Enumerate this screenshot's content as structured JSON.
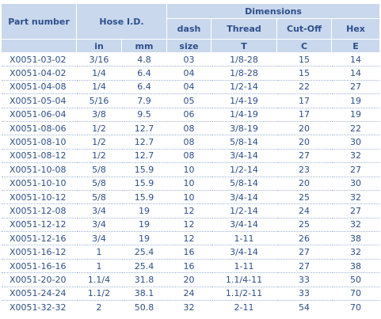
{
  "header": {
    "part_number": "Part number",
    "hose_id": "Hose I.D.",
    "dimensions": "Dimensions",
    "dash": "dash",
    "thread": "Thread",
    "cutoff": "Cut-Off",
    "hex": "Hex",
    "in": "in",
    "mm": "mm",
    "size": "size",
    "t": "T",
    "c": "C",
    "e": "E"
  },
  "rows": [
    {
      "part": "X0051-03-02",
      "in": "3/16",
      "mm": "4.8",
      "size": "03",
      "thread": "1/8-28",
      "cutoff": "15",
      "hex": "14"
    },
    {
      "part": "X0051-04-02",
      "in": "1/4",
      "mm": "6.4",
      "size": "04",
      "thread": "1/8-28",
      "cutoff": "15",
      "hex": "14"
    },
    {
      "part": "X0051-04-08",
      "in": "1/4",
      "mm": "6.4",
      "size": "04",
      "thread": "1/2-14",
      "cutoff": "22",
      "hex": "27"
    },
    {
      "part": "X0051-05-04",
      "in": "5/16",
      "mm": "7.9",
      "size": "05",
      "thread": "1/4-19",
      "cutoff": "17",
      "hex": "19"
    },
    {
      "part": "X0051-06-04",
      "in": "3/8",
      "mm": "9.5",
      "size": "06",
      "thread": "1/4-19",
      "cutoff": "17",
      "hex": "19"
    },
    {
      "part": "X0051-08-06",
      "in": "1/2",
      "mm": "12.7",
      "size": "08",
      "thread": "3/8-19",
      "cutoff": "20",
      "hex": "22"
    },
    {
      "part": "X0051-08-10",
      "in": "1/2",
      "mm": "12.7",
      "size": "08",
      "thread": "5/8-14",
      "cutoff": "20",
      "hex": "30"
    },
    {
      "part": "X0051-08-12",
      "in": "1/2",
      "mm": "12.7",
      "size": "08",
      "thread": "3/4-14",
      "cutoff": "27",
      "hex": "32"
    },
    {
      "part": "X0051-10-08",
      "in": "5/8",
      "mm": "15.9",
      "size": "10",
      "thread": "1/2-14",
      "cutoff": "23",
      "hex": "27"
    },
    {
      "part": "X0051-10-10",
      "in": "5/8",
      "mm": "15.9",
      "size": "10",
      "thread": "5/8-14",
      "cutoff": "20",
      "hex": "30"
    },
    {
      "part": "X0051-10-12",
      "in": "5/8",
      "mm": "15.9",
      "size": "10",
      "thread": "3/4-14",
      "cutoff": "25",
      "hex": "32"
    },
    {
      "part": "X0051-12-08",
      "in": "3/4",
      "mm": "19",
      "size": "12",
      "thread": "1/2-14",
      "cutoff": "24",
      "hex": "27"
    },
    {
      "part": "X0051-12-12",
      "in": "3/4",
      "mm": "19",
      "size": "12",
      "thread": "3/4-14",
      "cutoff": "25",
      "hex": "32"
    },
    {
      "part": "X0051-12-16",
      "in": "3/4",
      "mm": "19",
      "size": "12",
      "thread": "1-11",
      "cutoff": "26",
      "hex": "38"
    },
    {
      "part": "X0051-16-12",
      "in": "1",
      "mm": "25.4",
      "size": "16",
      "thread": "3/4-14",
      "cutoff": "27",
      "hex": "32"
    },
    {
      "part": "X0051-16-16",
      "in": "1",
      "mm": "25.4",
      "size": "16",
      "thread": "1-11",
      "cutoff": "27",
      "hex": "38"
    },
    {
      "part": "X0051-20-20",
      "in": "1.1/4",
      "mm": "31.8",
      "size": "20",
      "thread": "1.1/4-11",
      "cutoff": "33",
      "hex": "50"
    },
    {
      "part": "X0051-24-24",
      "in": "1.1/2",
      "mm": "38.1",
      "size": "24",
      "thread": "1.1/2-11",
      "cutoff": "33",
      "hex": "70"
    },
    {
      "part": "X0051-32-32",
      "in": "2",
      "mm": "50.8",
      "size": "32",
      "thread": "2-11",
      "cutoff": "54",
      "hex": "70"
    }
  ]
}
